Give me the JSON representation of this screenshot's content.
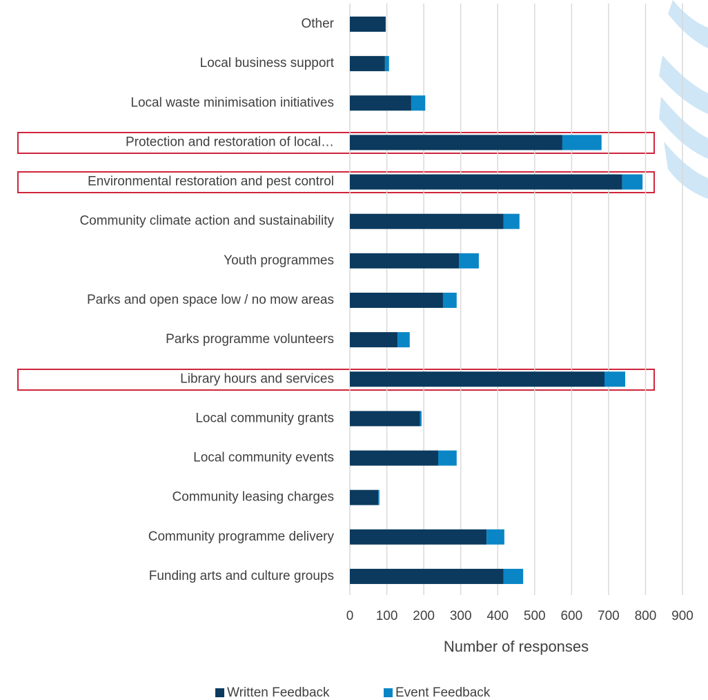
{
  "chart_data": {
    "type": "stacked_barh",
    "categories": [
      "Other",
      "Local business support",
      "Local waste minimisation initiatives",
      "Protection and restoration of local…",
      "Environmental restoration and pest control",
      "Community climate action and sustainability",
      "Youth programmes",
      "Parks and open space low / no mow areas",
      "Parks programme volunteers",
      "Library hours and services",
      "Local community grants",
      "Local community events",
      "Community leasing charges",
      "Community programme delivery",
      "Funding arts and culture groups"
    ],
    "series": [
      {
        "name": "Written Feedback",
        "color": "#0b3a5e",
        "values": [
          97,
          95,
          166,
          575,
          737,
          416,
          295,
          252,
          129,
          689,
          190,
          239,
          77,
          370,
          416
        ]
      },
      {
        "name": "Event Feedback",
        "color": "#0a86c6",
        "values": [
          0,
          11,
          38,
          106,
          55,
          43,
          54,
          37,
          33,
          56,
          4,
          50,
          3,
          48,
          53
        ]
      }
    ],
    "xlabel": "Number of responses",
    "xlim": [
      0,
      900
    ],
    "xticks": [
      0,
      100,
      200,
      300,
      400,
      500,
      600,
      700,
      800,
      900
    ],
    "grid": true,
    "legend": "bottom"
  }
}
